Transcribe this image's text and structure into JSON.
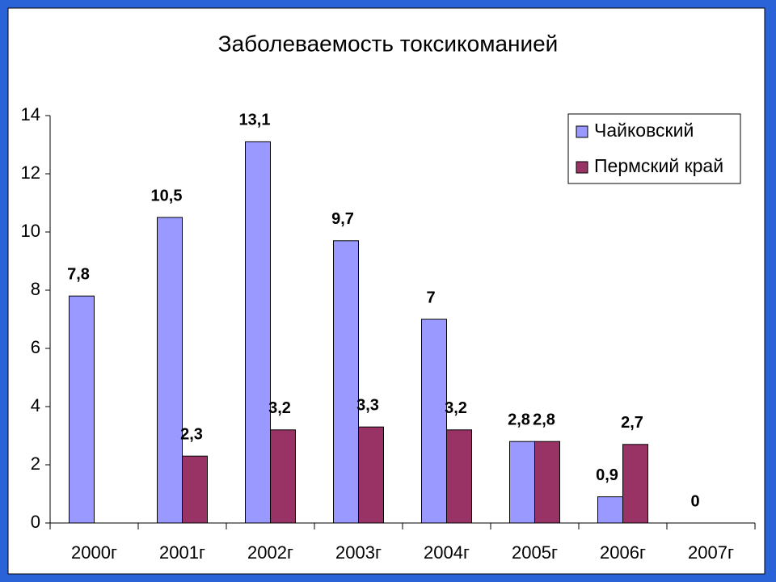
{
  "chart_data": {
    "type": "bar",
    "title": "Заболеваемость токсикоманией",
    "categories": [
      "2000г",
      "2001г",
      "2002г",
      "2003г",
      "2004г",
      "2005г",
      "2006г",
      "2007г"
    ],
    "series": [
      {
        "name": "Чайковский",
        "color": "#9999ff",
        "values": [
          7.8,
          10.5,
          13.1,
          9.7,
          7,
          2.8,
          0.9,
          0
        ],
        "value_labels": [
          "7,8",
          "10,5",
          "13,1",
          "9,7",
          "7",
          "2,8",
          "0,9",
          "0"
        ]
      },
      {
        "name": "Пермский край",
        "color": "#993366",
        "values": [
          null,
          2.3,
          3.2,
          3.3,
          3.2,
          2.8,
          2.7,
          null
        ],
        "value_labels": [
          null,
          "2,3",
          "3,2",
          "3,3",
          "3,2",
          "2,8",
          "2,7",
          null
        ]
      }
    ],
    "ylim": [
      0,
      14
    ],
    "yticks": [
      0,
      2,
      4,
      6,
      8,
      10,
      12,
      14
    ],
    "grid": false,
    "legend": "top-right"
  }
}
